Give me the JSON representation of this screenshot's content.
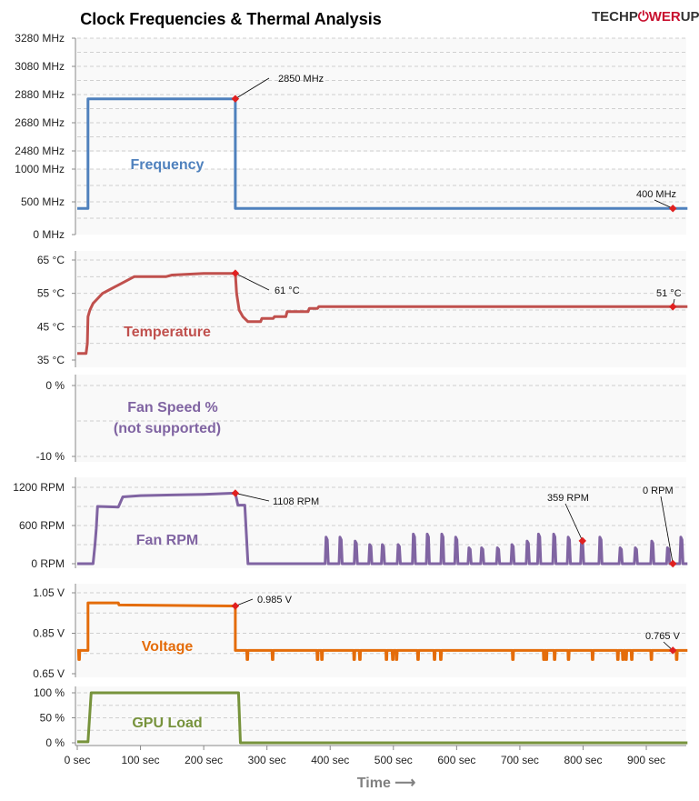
{
  "title": "Clock Frequencies & Thermal  Analysis",
  "logo": {
    "text_left": "TECHP",
    "text_mid": "WER",
    "text_right": "UP",
    "colors": {
      "dark": "#333333",
      "red": "#c8102e"
    }
  },
  "chart_data": {
    "type": "line",
    "xlabel": "Time ⟶",
    "xlim": [
      0,
      965
    ],
    "x_ticks": [
      0,
      100,
      200,
      300,
      400,
      500,
      600,
      700,
      800,
      900
    ],
    "x_tick_labels": [
      "0 sec",
      "100 sec",
      "200 sec",
      "300 sec",
      "400 sec",
      "500 sec",
      "600 sec",
      "700 sec",
      "800 sec",
      "900 sec"
    ],
    "grid": true,
    "panels": [
      {
        "key": "freq",
        "name": "Frequency",
        "color": "#4f81bd",
        "ylim_lower": [
          0,
          1000
        ],
        "ylim_upper": [
          2480,
          3280
        ],
        "broken_axis": true,
        "tick_labels": [
          "3280 MHz",
          "3080 MHz",
          "2880 MHz",
          "2680 MHz",
          "2480 MHz",
          "1000 MHz",
          "500 MHz",
          "0 MHz"
        ],
        "ticks": [
          3280,
          3080,
          2880,
          2680,
          2480,
          1000,
          500,
          0
        ],
        "points": [
          [
            0,
            400
          ],
          [
            17,
            400
          ],
          [
            17,
            2850
          ],
          [
            250,
            2850
          ],
          [
            250,
            400
          ],
          [
            965,
            400
          ]
        ],
        "annotations": [
          {
            "t": 250,
            "v": 2850,
            "text": "2850 MHz"
          },
          {
            "t": 942,
            "v": 400,
            "text": "400 MHz"
          }
        ]
      },
      {
        "key": "temp",
        "name": "Temperature",
        "color": "#c0504d",
        "ylim": [
          35,
          65
        ],
        "tick_labels": [
          "65 °C",
          "55 °C",
          "45 °C",
          "35 °C"
        ],
        "ticks": [
          65,
          55,
          45,
          35
        ],
        "points": [
          [
            0,
            37
          ],
          [
            14,
            37
          ],
          [
            16,
            40
          ],
          [
            17,
            48
          ],
          [
            20,
            50
          ],
          [
            25,
            52
          ],
          [
            30,
            53
          ],
          [
            40,
            55
          ],
          [
            50,
            56
          ],
          [
            60,
            57
          ],
          [
            70,
            58
          ],
          [
            90,
            60
          ],
          [
            140,
            60
          ],
          [
            150,
            60.5
          ],
          [
            200,
            61
          ],
          [
            250,
            61
          ],
          [
            252,
            55
          ],
          [
            256,
            50
          ],
          [
            262,
            48
          ],
          [
            270,
            46.5
          ],
          [
            290,
            46.5
          ],
          [
            292,
            47.5
          ],
          [
            310,
            47.5
          ],
          [
            312,
            48
          ],
          [
            330,
            48
          ],
          [
            332,
            49.5
          ],
          [
            365,
            49.5
          ],
          [
            367,
            50.5
          ],
          [
            380,
            50.5
          ],
          [
            382,
            51
          ],
          [
            965,
            51
          ]
        ],
        "annotations": [
          {
            "t": 250,
            "v": 61,
            "text": "61 °C"
          },
          {
            "t": 942,
            "v": 51,
            "text": "51 °C"
          }
        ]
      },
      {
        "key": "fanpct",
        "name": "Fan Speed %",
        "note": "(not supported)",
        "color": "#8064a2",
        "ylim": [
          -10,
          0
        ],
        "tick_labels": [
          "0 %",
          "-10 %"
        ],
        "ticks": [
          0,
          -10
        ],
        "points": [],
        "annotations": []
      },
      {
        "key": "rpm",
        "name": "Fan RPM",
        "color": "#8064a2",
        "ylim": [
          0,
          1200
        ],
        "tick_labels": [
          "1200 RPM",
          "600 RPM",
          "0 RPM"
        ],
        "ticks": [
          1200,
          600,
          0
        ],
        "points": [
          [
            0,
            0
          ],
          [
            25,
            0
          ],
          [
            28,
            300
          ],
          [
            30,
            550
          ],
          [
            32,
            900
          ],
          [
            65,
            890
          ],
          [
            72,
            1050
          ],
          [
            100,
            1070
          ],
          [
            150,
            1080
          ],
          [
            200,
            1090
          ],
          [
            250,
            1108
          ],
          [
            254,
            920
          ],
          [
            265,
            920
          ],
          [
            270,
            0
          ]
        ],
        "spikes": [
          [
            395,
            418
          ],
          [
            417,
            418
          ],
          [
            441,
            355
          ],
          [
            464,
            300
          ],
          [
            484,
            300
          ],
          [
            509,
            300
          ],
          [
            533,
            466
          ],
          [
            555,
            466
          ],
          [
            578,
            466
          ],
          [
            600,
            418
          ],
          [
            621,
            250
          ],
          [
            641,
            250
          ],
          [
            666,
            250
          ],
          [
            689,
            300
          ],
          [
            713,
            355
          ],
          [
            731,
            466
          ],
          [
            755,
            466
          ],
          [
            778,
            418
          ],
          [
            799,
            359
          ],
          [
            828,
            418
          ],
          [
            860,
            250
          ],
          [
            884,
            250
          ],
          [
            910,
            355
          ],
          [
            935,
            250
          ],
          [
            956,
            418
          ]
        ],
        "annotations": [
          {
            "t": 250,
            "v": 1108,
            "text": "1108 RPM"
          },
          {
            "t": 799,
            "v": 359,
            "text": "359 RPM"
          },
          {
            "t": 942,
            "v": 0,
            "text": "0 RPM"
          }
        ]
      },
      {
        "key": "volt",
        "name": "Voltage",
        "color": "#e46c0a",
        "ylim": [
          0.65,
          1.05
        ],
        "tick_labels": [
          "1.05 V",
          "0.85 V",
          "0.65 V"
        ],
        "ticks": [
          1.05,
          0.85,
          0.65
        ],
        "points": [
          [
            0,
            0.765
          ],
          [
            17,
            0.765
          ],
          [
            17,
            1.0
          ],
          [
            65,
            1.0
          ],
          [
            66,
            0.99
          ],
          [
            250,
            0.985
          ],
          [
            250,
            0.765
          ],
          [
            965,
            0.765
          ]
        ],
        "dips": [
          3,
          269,
          309,
          380,
          387,
          438,
          447,
          489,
          499,
          505,
          539,
          565,
          575,
          689,
          738,
          742,
          755,
          777,
          815,
          855,
          863,
          868,
          877,
          908,
          948
        ],
        "dip_value": 0.72,
        "annotations": [
          {
            "t": 250,
            "v": 0.985,
            "text": "0.985 V"
          },
          {
            "t": 942,
            "v": 0.765,
            "text": "0.765 V"
          }
        ]
      },
      {
        "key": "load",
        "name": "GPU Load",
        "color": "#77933c",
        "ylim": [
          0,
          100
        ],
        "tick_labels": [
          "100 %",
          "50 %",
          "0 %"
        ],
        "ticks": [
          100,
          50,
          0
        ],
        "points": [
          [
            0,
            2
          ],
          [
            17,
            2
          ],
          [
            22,
            100
          ],
          [
            255,
            100
          ],
          [
            258,
            0
          ],
          [
            965,
            0
          ]
        ],
        "annotations": []
      }
    ]
  }
}
